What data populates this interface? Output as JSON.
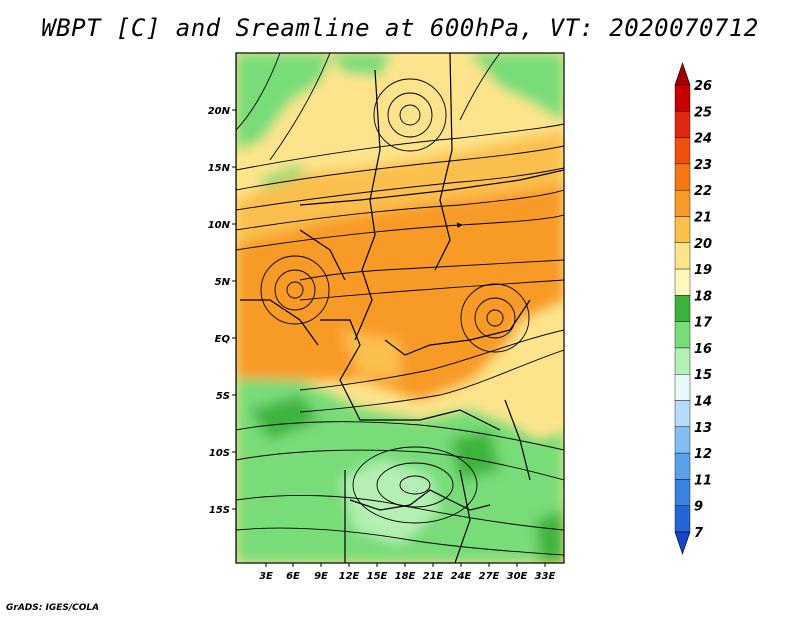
{
  "title": "WBPT [C] and Sreamline at 600hPa, VT: 2020070712",
  "footer": "GrADS: IGES/COLA",
  "map": {
    "lat_ticks": [
      "20N",
      "15N",
      "10N",
      "5N",
      "EQ",
      "5S",
      "10S",
      "15S"
    ],
    "lon_ticks": [
      "3E",
      "6E",
      "9E",
      "12E",
      "15E",
      "18E",
      "21E",
      "24E",
      "27E",
      "30E",
      "33E"
    ]
  },
  "colorbar": {
    "labels": [
      "26",
      "25",
      "24",
      "23",
      "22",
      "21",
      "20",
      "19",
      "18",
      "17",
      "16",
      "15",
      "14",
      "13",
      "12",
      "11",
      "9",
      "7"
    ],
    "colors": [
      "#a50000",
      "#c80000",
      "#e02810",
      "#f0500a",
      "#f57814",
      "#f89a28",
      "#fbbf4e",
      "#fde48c",
      "#fff7c0",
      "#3cb43c",
      "#78dc78",
      "#b4f0b4",
      "#e6fafa",
      "#b4dcfa",
      "#82bef0",
      "#5aa0eb",
      "#3c82e1",
      "#2464d7",
      "#1446c8"
    ]
  }
}
